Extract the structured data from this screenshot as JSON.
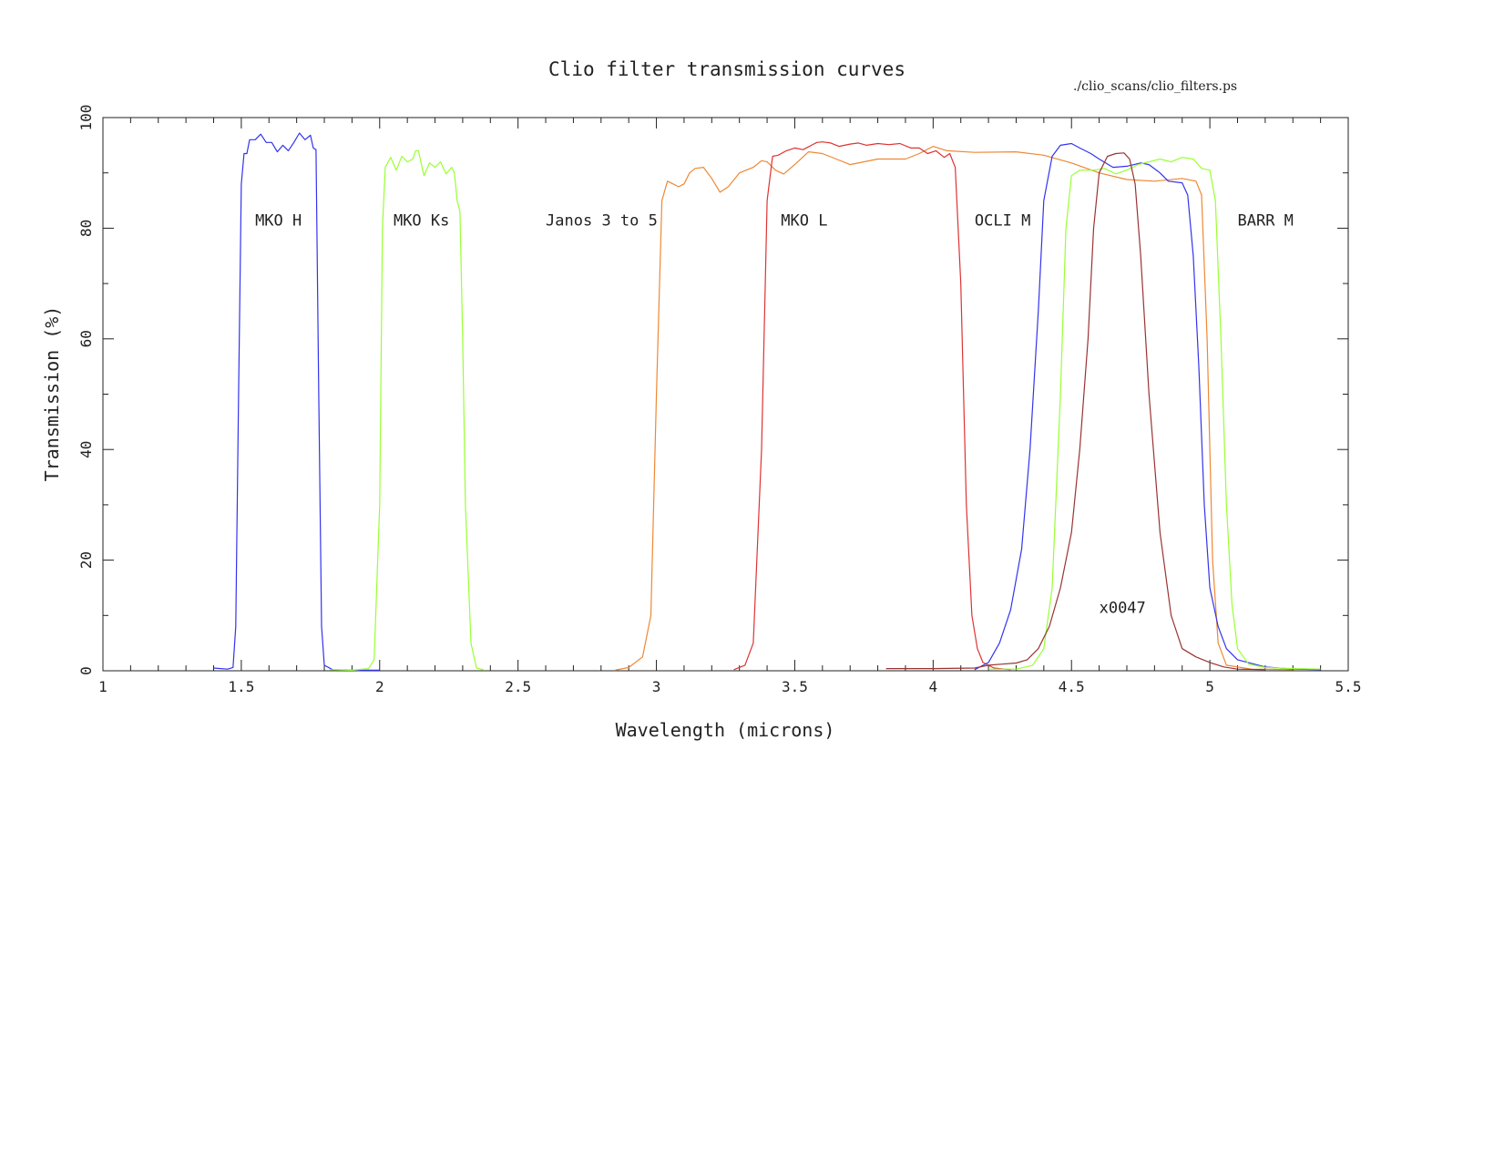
{
  "chart_data": {
    "type": "line",
    "title": "Clio filter transmission curves",
    "file_label": "./clio_scans/clio_filters.ps",
    "xlabel": "Wavelength (microns)",
    "ylabel": "Transmission (%)",
    "xlim": [
      1,
      5.5
    ],
    "ylim": [
      0,
      100
    ],
    "x_ticks": [
      "1",
      "1.5",
      "2",
      "2.5",
      "3",
      "3.5",
      "4",
      "4.5",
      "5",
      "5.5"
    ],
    "y_ticks": [
      "0",
      "20",
      "40",
      "60",
      "80",
      "100"
    ],
    "grid": false,
    "annotations": [
      {
        "text": "MKO H",
        "x": 1.55,
        "y": 80.5
      },
      {
        "text": "MKO Ks",
        "x": 2.05,
        "y": 80.5
      },
      {
        "text": "Janos 3 to 5",
        "x": 2.6,
        "y": 80.5
      },
      {
        "text": "MKO L",
        "x": 3.45,
        "y": 80.5
      },
      {
        "text": "OCLI M",
        "x": 4.15,
        "y": 80.5
      },
      {
        "text": "BARR M",
        "x": 5.1,
        "y": 80.5
      },
      {
        "text": "x0047",
        "x": 4.6,
        "y": 10.5
      }
    ],
    "series": [
      {
        "color": "#3333ee",
        "points": [
          [
            1.4,
            0.5
          ],
          [
            1.45,
            0.3
          ],
          [
            1.47,
            0.6
          ],
          [
            1.48,
            8
          ],
          [
            1.49,
            50
          ],
          [
            1.5,
            88
          ],
          [
            1.51,
            93.5
          ],
          [
            1.52,
            93.5
          ],
          [
            1.53,
            96
          ],
          [
            1.55,
            96
          ],
          [
            1.57,
            97
          ],
          [
            1.59,
            95.5
          ],
          [
            1.61,
            95.5
          ],
          [
            1.63,
            93.8
          ],
          [
            1.65,
            95
          ],
          [
            1.67,
            94
          ],
          [
            1.69,
            95.5
          ],
          [
            1.71,
            97.2
          ],
          [
            1.73,
            96
          ],
          [
            1.75,
            96.8
          ],
          [
            1.76,
            94.5
          ],
          [
            1.77,
            94.2
          ],
          [
            1.78,
            50
          ],
          [
            1.79,
            8
          ],
          [
            1.8,
            1
          ],
          [
            1.83,
            0.2
          ],
          [
            1.9,
            0.1
          ],
          [
            2.0,
            0.1
          ]
        ]
      },
      {
        "color": "#99ff33",
        "points": [
          [
            1.82,
            0.2
          ],
          [
            1.9,
            0.1
          ],
          [
            1.96,
            0.4
          ],
          [
            1.98,
            2
          ],
          [
            2.0,
            30
          ],
          [
            2.01,
            80
          ],
          [
            2.02,
            91
          ],
          [
            2.04,
            92.8
          ],
          [
            2.06,
            90.5
          ],
          [
            2.08,
            93
          ],
          [
            2.1,
            92
          ],
          [
            2.12,
            92.5
          ],
          [
            2.13,
            94
          ],
          [
            2.14,
            94
          ],
          [
            2.16,
            89.5
          ],
          [
            2.18,
            91.8
          ],
          [
            2.2,
            91
          ],
          [
            2.22,
            92
          ],
          [
            2.24,
            89.8
          ],
          [
            2.26,
            91
          ],
          [
            2.27,
            90
          ],
          [
            2.28,
            85
          ],
          [
            2.29,
            83
          ],
          [
            2.3,
            60
          ],
          [
            2.31,
            30
          ],
          [
            2.33,
            5
          ],
          [
            2.35,
            0.5
          ],
          [
            2.38,
            0.1
          ]
        ]
      },
      {
        "color": "#ee8833",
        "points": [
          [
            2.85,
            0.1
          ],
          [
            2.9,
            0.6
          ],
          [
            2.95,
            2.5
          ],
          [
            2.98,
            10
          ],
          [
            3.0,
            50
          ],
          [
            3.02,
            85
          ],
          [
            3.04,
            88.5
          ],
          [
            3.06,
            88
          ],
          [
            3.08,
            87.5
          ],
          [
            3.1,
            88
          ],
          [
            3.12,
            90
          ],
          [
            3.14,
            90.8
          ],
          [
            3.17,
            91
          ],
          [
            3.2,
            89
          ],
          [
            3.23,
            86.5
          ],
          [
            3.26,
            87.5
          ],
          [
            3.3,
            90
          ],
          [
            3.35,
            91
          ],
          [
            3.38,
            92.2
          ],
          [
            3.4,
            92
          ],
          [
            3.43,
            90.5
          ],
          [
            3.46,
            89.8
          ],
          [
            3.5,
            91.5
          ],
          [
            3.55,
            93.8
          ],
          [
            3.6,
            93.5
          ],
          [
            3.65,
            92.5
          ],
          [
            3.7,
            91.5
          ],
          [
            3.8,
            92.5
          ],
          [
            3.9,
            92.5
          ],
          [
            3.95,
            93.5
          ],
          [
            4.0,
            94.8
          ],
          [
            4.05,
            94
          ],
          [
            4.15,
            93.7
          ],
          [
            4.3,
            93.8
          ],
          [
            4.4,
            93.2
          ],
          [
            4.5,
            91.8
          ],
          [
            4.6,
            90
          ],
          [
            4.7,
            88.8
          ],
          [
            4.8,
            88.5
          ],
          [
            4.9,
            89
          ],
          [
            4.95,
            88.5
          ],
          [
            4.97,
            86
          ],
          [
            4.99,
            60
          ],
          [
            5.01,
            20
          ],
          [
            5.03,
            5
          ],
          [
            5.06,
            1
          ],
          [
            5.15,
            0.3
          ],
          [
            5.3,
            0.2
          ]
        ]
      },
      {
        "color": "#dd3333",
        "points": [
          [
            3.28,
            0.2
          ],
          [
            3.32,
            1
          ],
          [
            3.35,
            5
          ],
          [
            3.38,
            40
          ],
          [
            3.4,
            85
          ],
          [
            3.42,
            93
          ],
          [
            3.44,
            93.2
          ],
          [
            3.47,
            94
          ],
          [
            3.5,
            94.5
          ],
          [
            3.53,
            94.2
          ],
          [
            3.56,
            95
          ],
          [
            3.58,
            95.5
          ],
          [
            3.6,
            95.6
          ],
          [
            3.63,
            95.4
          ],
          [
            3.66,
            94.8
          ],
          [
            3.7,
            95.2
          ],
          [
            3.73,
            95.4
          ],
          [
            3.76,
            95
          ],
          [
            3.8,
            95.3
          ],
          [
            3.84,
            95.1
          ],
          [
            3.88,
            95.3
          ],
          [
            3.92,
            94.5
          ],
          [
            3.95,
            94.5
          ],
          [
            3.98,
            93.5
          ],
          [
            4.01,
            94
          ],
          [
            4.04,
            92.8
          ],
          [
            4.06,
            93.5
          ],
          [
            4.08,
            91
          ],
          [
            4.1,
            70
          ],
          [
            4.12,
            30
          ],
          [
            4.14,
            10
          ],
          [
            4.16,
            4
          ],
          [
            4.18,
            1.5
          ],
          [
            4.22,
            0.5
          ],
          [
            4.28,
            0.2
          ]
        ]
      },
      {
        "color": "#3333ee",
        "points": [
          [
            4.15,
            0.2
          ],
          [
            4.2,
            1.5
          ],
          [
            4.24,
            5
          ],
          [
            4.28,
            11
          ],
          [
            4.32,
            22
          ],
          [
            4.35,
            40
          ],
          [
            4.38,
            65
          ],
          [
            4.4,
            85
          ],
          [
            4.43,
            93
          ],
          [
            4.46,
            95
          ],
          [
            4.5,
            95.3
          ],
          [
            4.53,
            94.5
          ],
          [
            4.57,
            93.5
          ],
          [
            4.6,
            92.5
          ],
          [
            4.65,
            91
          ],
          [
            4.7,
            91.2
          ],
          [
            4.75,
            91.8
          ],
          [
            4.78,
            91.5
          ],
          [
            4.82,
            90
          ],
          [
            4.85,
            88.5
          ],
          [
            4.9,
            88.2
          ],
          [
            4.92,
            86
          ],
          [
            4.94,
            75
          ],
          [
            4.96,
            55
          ],
          [
            4.98,
            30
          ],
          [
            5.0,
            15
          ],
          [
            5.03,
            8
          ],
          [
            5.06,
            4
          ],
          [
            5.1,
            2
          ],
          [
            5.2,
            0.7
          ],
          [
            5.3,
            0.3
          ],
          [
            5.4,
            0.2
          ]
        ]
      },
      {
        "color": "#99ff33",
        "points": [
          [
            4.2,
            0.3
          ],
          [
            4.3,
            0.3
          ],
          [
            4.36,
            1
          ],
          [
            4.4,
            4
          ],
          [
            4.43,
            15
          ],
          [
            4.46,
            50
          ],
          [
            4.48,
            80
          ],
          [
            4.5,
            89.5
          ],
          [
            4.53,
            90.5
          ],
          [
            4.58,
            90.5
          ],
          [
            4.62,
            90.8
          ],
          [
            4.66,
            89.8
          ],
          [
            4.7,
            90.5
          ],
          [
            4.74,
            91.5
          ],
          [
            4.78,
            92
          ],
          [
            4.82,
            92.5
          ],
          [
            4.86,
            92
          ],
          [
            4.9,
            92.8
          ],
          [
            4.94,
            92.5
          ],
          [
            4.97,
            90.8
          ],
          [
            5.0,
            90.5
          ],
          [
            5.02,
            85
          ],
          [
            5.04,
            60
          ],
          [
            5.06,
            30
          ],
          [
            5.08,
            12
          ],
          [
            5.1,
            4
          ],
          [
            5.14,
            1.2
          ],
          [
            5.2,
            0.6
          ],
          [
            5.3,
            0.4
          ],
          [
            5.4,
            0.3
          ]
        ]
      },
      {
        "color": "#993333",
        "points": [
          [
            3.83,
            0.4
          ],
          [
            4.0,
            0.4
          ],
          [
            4.15,
            0.5
          ],
          [
            4.2,
            1
          ],
          [
            4.25,
            1.2
          ],
          [
            4.3,
            1.4
          ],
          [
            4.34,
            2
          ],
          [
            4.38,
            4
          ],
          [
            4.42,
            8
          ],
          [
            4.46,
            15
          ],
          [
            4.5,
            25
          ],
          [
            4.53,
            40
          ],
          [
            4.56,
            60
          ],
          [
            4.58,
            80
          ],
          [
            4.6,
            90
          ],
          [
            4.63,
            93
          ],
          [
            4.66,
            93.5
          ],
          [
            4.69,
            93.6
          ],
          [
            4.71,
            92.5
          ],
          [
            4.73,
            88
          ],
          [
            4.75,
            75
          ],
          [
            4.78,
            50
          ],
          [
            4.82,
            25
          ],
          [
            4.86,
            10
          ],
          [
            4.9,
            4
          ],
          [
            4.95,
            2.5
          ],
          [
            5.0,
            1.5
          ],
          [
            5.05,
            0.7
          ],
          [
            5.1,
            0.3
          ],
          [
            5.2,
            0.2
          ]
        ]
      }
    ]
  }
}
